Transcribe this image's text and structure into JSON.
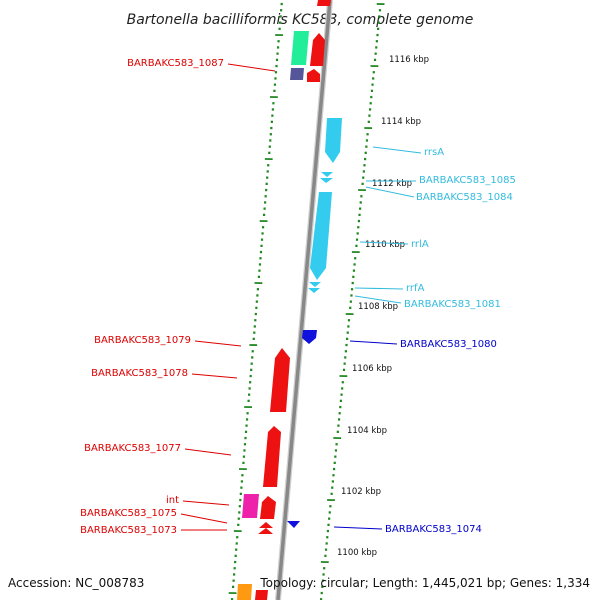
{
  "title": "Bartonella bacilliformis KC583, complete genome",
  "footer": {
    "accession": "Accession: NC_008783",
    "topology": "Topology: circular; Length: 1,445,021 bp; Genes: 1,334"
  },
  "scale_labels": [
    "1116 kbp",
    "1114 kbp",
    "1112 kbp",
    "1110 kbp",
    "1108 kbp",
    "1106 kbp",
    "1104 kbp",
    "1102 kbp",
    "1100 kbp"
  ],
  "left_labels": [
    {
      "name": "BARBAKC583_1087",
      "color": "#dd0000"
    },
    {
      "name": "BARBAKC583_1079",
      "color": "#dd0000"
    },
    {
      "name": "BARBAKC583_1078",
      "color": "#dd0000"
    },
    {
      "name": "BARBAKC583_1077",
      "color": "#dd0000"
    },
    {
      "name": "int",
      "color": "#dd0000"
    },
    {
      "name": "BARBAKC583_1075",
      "color": "#dd0000"
    },
    {
      "name": "BARBAKC583_1073",
      "color": "#dd0000"
    }
  ],
  "right_labels": [
    {
      "name": "rrsA",
      "color": "#33bbdd"
    },
    {
      "name": "BARBAKC583_1085",
      "color": "#33bbdd"
    },
    {
      "name": "BARBAKC583_1084",
      "color": "#33bbdd"
    },
    {
      "name": "rrlA",
      "color": "#33bbdd"
    },
    {
      "name": "rrfA",
      "color": "#33bbdd"
    },
    {
      "name": "BARBAKC583_1081",
      "color": "#33bbdd"
    },
    {
      "name": "BARBAKC583_1080",
      "color": "#0000cc"
    },
    {
      "name": "BARBAKC583_1074",
      "color": "#0000cc"
    }
  ],
  "colors": {
    "backbone": "#888888",
    "ticks": "#228822",
    "forward_gene": "#ee1111",
    "reverse_gene": "#33ccee",
    "reverse_gene_dark": "#1111dd",
    "green_gene": "#22ee99",
    "magenta_gene": "#ee22aa",
    "purple_gene": "#555599",
    "orange_gene": "#ff9911"
  }
}
